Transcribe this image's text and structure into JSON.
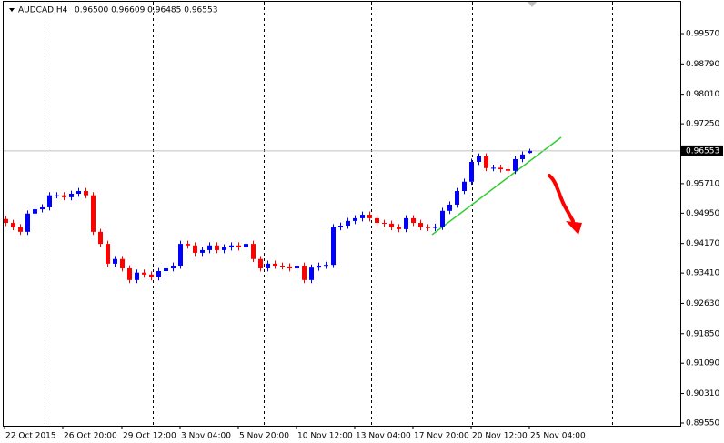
{
  "chart_data": {
    "type": "candlestick",
    "symbol": "AUDCAD,H4",
    "ohlc_text": "0.96500 0.96609 0.96485 0.96553",
    "up_color": "#0000ff",
    "down_color": "#ff0000",
    "ylim": [
      0.8948,
      1.0039
    ],
    "yticks": [
      {
        "value": 0.9957,
        "label": "0.99570"
      },
      {
        "value": 0.9879,
        "label": "0.98790"
      },
      {
        "value": 0.9801,
        "label": "0.98010"
      },
      {
        "value": 0.9725,
        "label": "0.97250"
      },
      {
        "value": 0.9571,
        "label": "0.95710"
      },
      {
        "value": 0.9495,
        "label": "0.94950"
      },
      {
        "value": 0.9417,
        "label": "0.94170"
      },
      {
        "value": 0.9341,
        "label": "0.93410"
      },
      {
        "value": 0.9263,
        "label": "0.92630"
      },
      {
        "value": 0.9185,
        "label": "0.91850"
      },
      {
        "value": 0.9109,
        "label": "0.91090"
      },
      {
        "value": 0.9031,
        "label": "0.90310"
      },
      {
        "value": 0.8955,
        "label": "0.89550"
      }
    ],
    "current_price": 0.96553,
    "x_labels": [
      "22 Oct 2015",
      "26 Oct 20:00",
      "29 Oct 12:00",
      "3 Nov 04:00",
      "5 Nov 20:00",
      "10 Nov 12:00",
      "13 Nov 04:00",
      "17 Nov 20:00",
      "20 Nov 12:00",
      "25 Nov 04:00"
    ],
    "candles": [
      [
        0.948,
        0.9488,
        0.9462,
        0.947
      ],
      [
        0.947,
        0.9478,
        0.9451,
        0.9459
      ],
      [
        0.9459,
        0.9467,
        0.9439,
        0.9447
      ],
      [
        0.9447,
        0.9502,
        0.9439,
        0.9494
      ],
      [
        0.9494,
        0.9513,
        0.9486,
        0.9505
      ],
      [
        0.9505,
        0.9518,
        0.9497,
        0.951
      ],
      [
        0.951,
        0.9549,
        0.9502,
        0.9541
      ],
      [
        0.9541,
        0.9549,
        0.9533,
        0.9541
      ],
      [
        0.9541,
        0.9549,
        0.9528,
        0.9536
      ],
      [
        0.9536,
        0.9553,
        0.9528,
        0.9545
      ],
      [
        0.9545,
        0.956,
        0.9537,
        0.9552
      ],
      [
        0.9552,
        0.956,
        0.9533,
        0.9541
      ],
      [
        0.9541,
        0.9549,
        0.9439,
        0.9447
      ],
      [
        0.9447,
        0.9455,
        0.9408,
        0.9416
      ],
      [
        0.9416,
        0.9424,
        0.9357,
        0.9365
      ],
      [
        0.9365,
        0.9385,
        0.9357,
        0.9377
      ],
      [
        0.9377,
        0.9385,
        0.9345,
        0.9353
      ],
      [
        0.9353,
        0.9361,
        0.9315,
        0.9323
      ],
      [
        0.9323,
        0.935,
        0.9315,
        0.9342
      ],
      [
        0.9342,
        0.935,
        0.9329,
        0.9337
      ],
      [
        0.9337,
        0.9345,
        0.9322,
        0.933
      ],
      [
        0.933,
        0.9354,
        0.9322,
        0.9346
      ],
      [
        0.9346,
        0.9361,
        0.9338,
        0.9353
      ],
      [
        0.9353,
        0.9368,
        0.9345,
        0.936
      ],
      [
        0.936,
        0.9424,
        0.9352,
        0.9416
      ],
      [
        0.9416,
        0.9424,
        0.9404,
        0.9412
      ],
      [
        0.9412,
        0.942,
        0.9385,
        0.9393
      ],
      [
        0.9393,
        0.9408,
        0.9385,
        0.94
      ],
      [
        0.94,
        0.942,
        0.9392,
        0.9412
      ],
      [
        0.9412,
        0.942,
        0.9392,
        0.94
      ],
      [
        0.94,
        0.9415,
        0.9392,
        0.9407
      ],
      [
        0.9407,
        0.942,
        0.9399,
        0.9412
      ],
      [
        0.9412,
        0.942,
        0.9399,
        0.9407
      ],
      [
        0.9407,
        0.9424,
        0.9399,
        0.9416
      ],
      [
        0.9416,
        0.9424,
        0.9369,
        0.9377
      ],
      [
        0.9377,
        0.9385,
        0.9345,
        0.9353
      ],
      [
        0.9353,
        0.9373,
        0.9345,
        0.9365
      ],
      [
        0.9365,
        0.9373,
        0.9352,
        0.936
      ],
      [
        0.936,
        0.9368,
        0.935,
        0.9358
      ],
      [
        0.9358,
        0.9366,
        0.9345,
        0.9353
      ],
      [
        0.9353,
        0.9368,
        0.9345,
        0.936
      ],
      [
        0.936,
        0.9368,
        0.9315,
        0.9323
      ],
      [
        0.9323,
        0.9363,
        0.9315,
        0.9355
      ],
      [
        0.9355,
        0.9368,
        0.9347,
        0.936
      ],
      [
        0.936,
        0.937,
        0.9352,
        0.9362
      ],
      [
        0.9362,
        0.9467,
        0.9354,
        0.9459
      ],
      [
        0.9459,
        0.9471,
        0.9451,
        0.9463
      ],
      [
        0.9463,
        0.9483,
        0.9455,
        0.9475
      ],
      [
        0.9475,
        0.949,
        0.9467,
        0.9482
      ],
      [
        0.9482,
        0.9499,
        0.9474,
        0.9491
      ],
      [
        0.9491,
        0.9499,
        0.9474,
        0.9482
      ],
      [
        0.9482,
        0.949,
        0.9462,
        0.947
      ],
      [
        0.947,
        0.9478,
        0.946,
        0.9468
      ],
      [
        0.9468,
        0.9476,
        0.9451,
        0.9459
      ],
      [
        0.9459,
        0.9467,
        0.9446,
        0.9454
      ],
      [
        0.9454,
        0.949,
        0.9446,
        0.9482
      ],
      [
        0.9482,
        0.949,
        0.9462,
        0.947
      ],
      [
        0.947,
        0.9478,
        0.9451,
        0.9459
      ],
      [
        0.9459,
        0.9467,
        0.9449,
        0.9457
      ],
      [
        0.9457,
        0.9468,
        0.9449,
        0.946
      ],
      [
        0.946,
        0.9509,
        0.9452,
        0.9501
      ],
      [
        0.9501,
        0.9525,
        0.9493,
        0.9517
      ],
      [
        0.9517,
        0.956,
        0.9509,
        0.9552
      ],
      [
        0.9552,
        0.9584,
        0.9544,
        0.9576
      ],
      [
        0.9576,
        0.9635,
        0.9568,
        0.9627
      ],
      [
        0.9627,
        0.9649,
        0.9619,
        0.9641
      ],
      [
        0.9641,
        0.9649,
        0.9603,
        0.9611
      ],
      [
        0.9611,
        0.962,
        0.9603,
        0.9612
      ],
      [
        0.9612,
        0.962,
        0.96,
        0.9608
      ],
      [
        0.9608,
        0.9616,
        0.9596,
        0.9604
      ],
      [
        0.9604,
        0.9642,
        0.9596,
        0.9634
      ],
      [
        0.9634,
        0.9654,
        0.9626,
        0.9646
      ],
      [
        0.965,
        0.96609,
        0.96485,
        0.96553
      ]
    ]
  }
}
